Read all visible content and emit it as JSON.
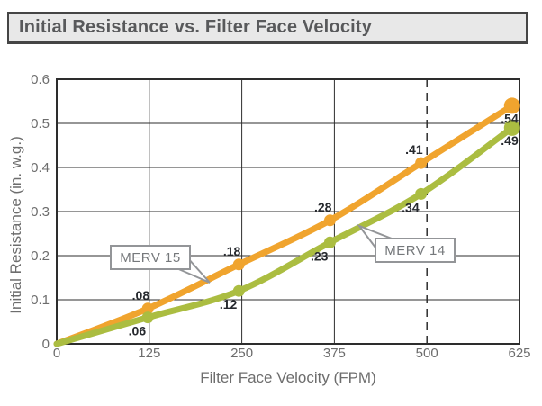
{
  "header": {
    "title": "Initial Resistance vs. Filter Face Velocity"
  },
  "colors": {
    "merv15": "#F0A42E",
    "merv14": "#ABBD41",
    "axis_text": "#6D6D6D",
    "grid": "#2D2D2D",
    "point_label_text": "#26292E",
    "callout_border": "#939598",
    "callout_text": "#75787B",
    "titlebar_bg": "#E8E8E8",
    "titlebar_text": "#58595B"
  },
  "chart_data": {
    "type": "line",
    "title": "Initial Resistance vs. Filter Face Velocity",
    "xlabel": "Filter Face Velocity (FPM)",
    "ylabel": "Initial Resistance (in. w.g.)",
    "xlim": [
      0,
      625
    ],
    "ylim": [
      0,
      0.6
    ],
    "x_ticks": [
      0,
      125,
      250,
      375,
      500,
      625
    ],
    "y_ticks": [
      0,
      0.1,
      0.2,
      0.3,
      0.4,
      0.5,
      0.6
    ],
    "grid": true,
    "reference_line": {
      "x": 500,
      "style": "dashed"
    },
    "x": [
      0,
      123,
      246,
      369,
      492,
      615
    ],
    "series": [
      {
        "name": "MERV 15",
        "color_key": "merv15",
        "values": [
          0,
          0.08,
          0.18,
          0.28,
          0.41,
          0.54
        ],
        "point_labels": [
          "",
          ".08",
          ".18",
          ".28",
          ".41",
          ".54"
        ],
        "label_positions": [
          "",
          "above-left",
          "above-left",
          "above-left",
          "above-left",
          "below-right"
        ]
      },
      {
        "name": "MERV 14",
        "color_key": "merv14",
        "values": [
          0,
          0.06,
          0.12,
          0.23,
          0.34,
          0.49
        ],
        "point_labels": [
          "",
          ".06",
          ".12",
          ".23",
          ".34",
          ".49"
        ],
        "label_positions": [
          "",
          "below-left",
          "below-left",
          "below-left",
          "below-left",
          "below-right"
        ]
      }
    ],
    "callouts": [
      {
        "text": "MERV 15",
        "series": "MERV 15"
      },
      {
        "text": "MERV 14",
        "series": "MERV 14"
      }
    ],
    "legend_position": "callouts-on-plot"
  }
}
